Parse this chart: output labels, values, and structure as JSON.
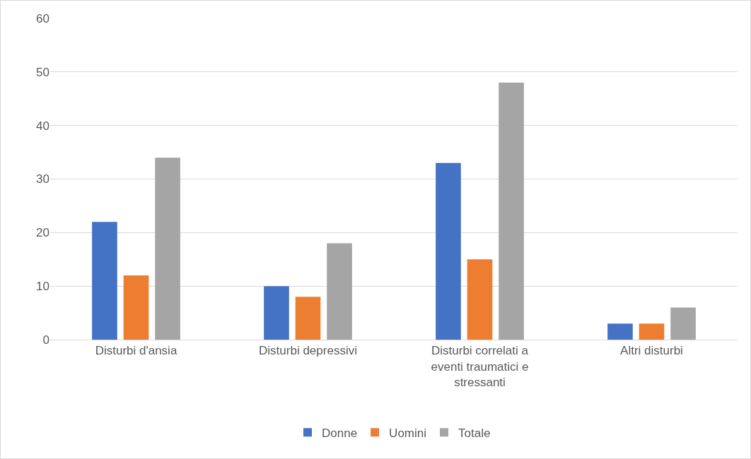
{
  "chart_data": {
    "type": "bar",
    "categories": [
      "Disturbi d'ansia",
      "Disturbi depressivi",
      "Disturbi correlati a eventi traumatici e stressanti",
      "Altri disturbi"
    ],
    "series": [
      {
        "name": "Donne",
        "color": "#4472c4",
        "values": [
          22,
          10,
          33,
          3
        ]
      },
      {
        "name": "Uomini",
        "color": "#ed7d31",
        "values": [
          12,
          8,
          15,
          3
        ]
      },
      {
        "name": "Totale",
        "color": "#a5a5a5",
        "values": [
          34,
          18,
          48,
          6
        ]
      }
    ],
    "ylim": [
      0,
      60
    ],
    "yticks": [
      0,
      10,
      20,
      30,
      40,
      50,
      60
    ],
    "grid": "y",
    "legend": "bottom"
  }
}
